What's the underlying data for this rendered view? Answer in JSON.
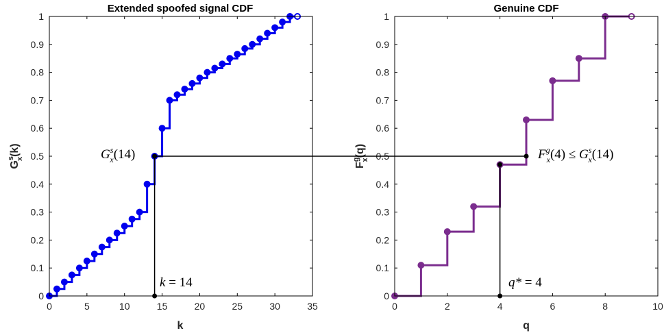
{
  "chart_data": [
    {
      "type": "line",
      "subtype": "step-cdf",
      "title": "Extended spoofed signal CDF",
      "xlabel": "k",
      "ylabel": {
        "base": "G",
        "sup": "s",
        "sub": "x",
        "arg": "(k)"
      },
      "xlim": [
        0,
        35
      ],
      "ylim": [
        0,
        1
      ],
      "xticks": [
        0,
        5,
        10,
        15,
        20,
        25,
        30,
        35
      ],
      "yticks": [
        0,
        0.1,
        0.2,
        0.3,
        0.4,
        0.5,
        0.6,
        0.7,
        0.8,
        0.9,
        1
      ],
      "grid": false,
      "color": "#0000ee",
      "series": [
        {
          "x": [
            0,
            1,
            2,
            3,
            4,
            5,
            6,
            7,
            8,
            9,
            10,
            11,
            12,
            13,
            14,
            15,
            16,
            17,
            18,
            19,
            20,
            21,
            22,
            23,
            24,
            25,
            26,
            27,
            28,
            29,
            30,
            31,
            32,
            33
          ],
          "y": [
            0,
            0.025,
            0.05,
            0.075,
            0.1,
            0.125,
            0.15,
            0.175,
            0.2,
            0.225,
            0.25,
            0.275,
            0.3,
            0.4,
            0.5,
            0.6,
            0.7,
            0.72,
            0.74,
            0.76,
            0.78,
            0.8,
            0.815,
            0.83,
            0.85,
            0.865,
            0.885,
            0.9,
            0.92,
            0.94,
            0.96,
            0.98,
            1.0,
            1.0
          ]
        }
      ]
    },
    {
      "type": "line",
      "subtype": "step-cdf",
      "title": "Genuine CDF",
      "xlabel": "q",
      "ylabel": {
        "base": "F",
        "sup": "g",
        "sub": "x",
        "arg": "(q)"
      },
      "xlim": [
        0,
        10
      ],
      "ylim": [
        0,
        1
      ],
      "xticks": [
        0,
        2,
        4,
        6,
        8,
        10
      ],
      "yticks": [
        0,
        0.1,
        0.2,
        0.3,
        0.4,
        0.5,
        0.6,
        0.7,
        0.8,
        0.9,
        1
      ],
      "grid": false,
      "color": "#7b2d8e",
      "series": [
        {
          "x": [
            0,
            1,
            2,
            3,
            4,
            5,
            6,
            7,
            8,
            9
          ],
          "y": [
            0,
            0.11,
            0.23,
            0.32,
            0.47,
            0.63,
            0.77,
            0.85,
            1.0,
            1.0
          ]
        }
      ]
    }
  ],
  "annotations": {
    "left_point": {
      "base": "G",
      "sup": "s",
      "sub": "x",
      "arg": "(14)"
    },
    "left_k": {
      "lhs": "k",
      "op": " = ",
      "val": "14"
    },
    "right_ineq": {
      "f": "F",
      "fsup": "g",
      "fsub": "x",
      "farg": "(4)",
      "op": " ≤ ",
      "g": "G",
      "gsup": "s",
      "gsub": "x",
      "garg": "(14)"
    },
    "right_q": {
      "lhs": "q*",
      "op": " = ",
      "val": "4"
    }
  }
}
